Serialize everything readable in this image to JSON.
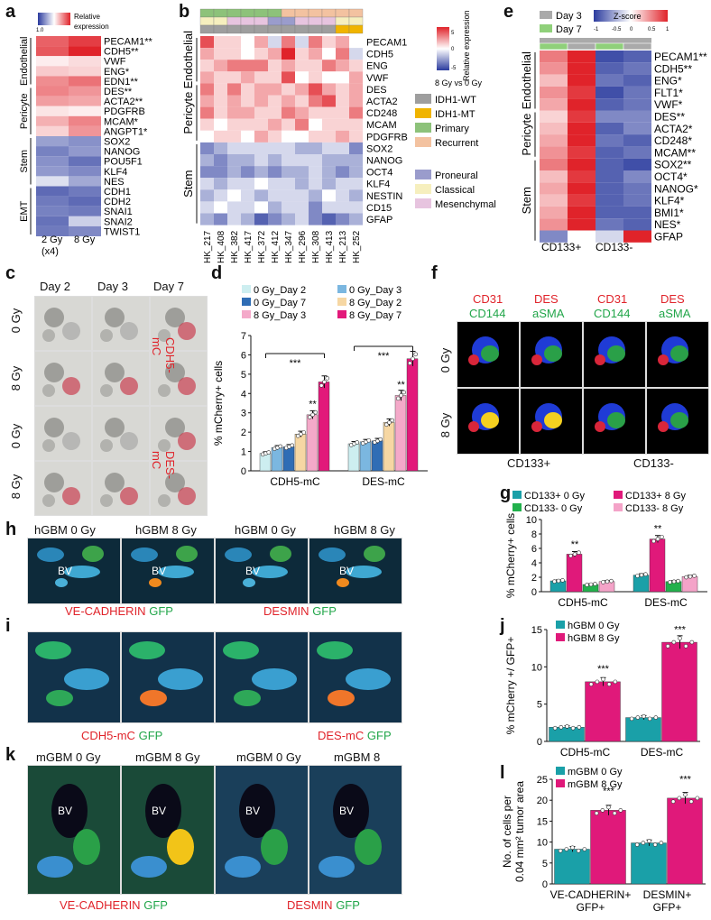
{
  "panel_labels": {
    "a": "a",
    "b": "b",
    "c": "c",
    "d": "d",
    "e": "e",
    "f": "f",
    "g": "g",
    "h": "h",
    "i": "i",
    "j": "j",
    "k": "k",
    "l": "l"
  },
  "heatmap_a": {
    "legend_title": "Relative expression",
    "legend_ticks": [
      "1.0",
      "0",
      "5"
    ],
    "groups": [
      "Endothelial",
      "Pericyte",
      "Stem",
      "EMT"
    ],
    "genes": [
      "PECAM1**",
      "CDH5**",
      "VWF",
      "ENG*",
      "EDN1**",
      "DES**",
      "ACTA2**",
      "PDGFRB",
      "MCAM*",
      "ANGPT1*",
      "SOX2",
      "NANOG",
      "POU5F1",
      "KLF4",
      "NES",
      "CDH1",
      "CDH2",
      "SNAI1",
      "SNAI2",
      "TWIST1"
    ],
    "columns": [
      "2 Gy\n(x4)",
      "8 Gy"
    ],
    "col_label_1": "2 Gy",
    "col_label_1b": "(x4)",
    "col_label_2": "8 Gy",
    "values": [
      [
        1.8,
        2.2
      ],
      [
        1.9,
        2.8
      ],
      [
        0.2,
        0.4
      ],
      [
        0.6,
        0.5
      ],
      [
        1.3,
        1.6
      ],
      [
        1.4,
        1.2
      ],
      [
        1.1,
        1.0
      ],
      [
        0.3,
        0.2
      ],
      [
        0.9,
        1.4
      ],
      [
        0.5,
        1.2
      ],
      [
        -1.2,
        -1.4
      ],
      [
        -1.6,
        -1.3
      ],
      [
        -1.4,
        -1.8
      ],
      [
        -1.3,
        -1.5
      ],
      [
        -0.4,
        -1.1
      ],
      [
        -1.9,
        -1.7
      ],
      [
        -1.7,
        -1.9
      ],
      [
        -1.6,
        -1.7
      ],
      [
        -1.8,
        -0.6
      ],
      [
        -1.7,
        -1.5
      ]
    ]
  },
  "heatmap_b": {
    "legend_title": "Relative expression",
    "legend_sub": "8 Gy vs 0 Gy",
    "legend_ticks": [
      "5",
      "0",
      "-5"
    ],
    "annot_legend": [
      {
        "label": "IDH1-WT",
        "color": "#9e9e9e"
      },
      {
        "label": "IDH1-MT",
        "color": "#f0b400"
      },
      {
        "label": "Primary",
        "color": "#8dc27a"
      },
      {
        "label": "Recurrent",
        "color": "#f3c2a0"
      },
      {
        "label": "Proneural",
        "color": "#9a9ccc"
      },
      {
        "label": "Classical",
        "color": "#f6efbe"
      },
      {
        "label": "Mesenchymal",
        "color": "#e7c4df"
      }
    ],
    "groups": [
      "Endothelial",
      "Pericyte",
      "Stem"
    ],
    "genes": [
      "PECAM1",
      "CDH5",
      "ENG",
      "VWF",
      "DES",
      "ACTA2",
      "CD248",
      "MCAM",
      "PDGFRB",
      "SOX2",
      "NANOG",
      "OCT4",
      "KLF4",
      "NESTIN",
      "CD15",
      "GFAP"
    ],
    "samples": [
      "HK_217",
      "HK_408",
      "HK_382",
      "HK_417",
      "HK_372",
      "HK_412",
      "HK_347",
      "HK_296",
      "HK_308",
      "HK_413",
      "HK_213",
      "HK_252"
    ]
  },
  "heatmap_e": {
    "legend_day3": "Day 3",
    "legend_day7": "Day 7",
    "zscore": "Z-score",
    "ticks": [
      "-1",
      "-0.5",
      "0",
      "0.5",
      "1"
    ],
    "groups": [
      "Endothelial",
      "Pericyte",
      "Stem"
    ],
    "genes": [
      "PECAM1**",
      "CDH5**",
      "ENG*",
      "FLT1*",
      "VWF*",
      "DES**",
      "ACTA2*",
      "CD248*",
      "MCAM**",
      "SOX2**",
      "OCT4*",
      "NANOG*",
      "KLF4*",
      "BMI1*",
      "NES*",
      "GFAP"
    ],
    "columns": [
      "CD133+",
      "CD133-"
    ]
  },
  "panel_c": {
    "days": [
      "Day 2",
      "Day 3",
      "Day 7"
    ],
    "rows": [
      "0 Gy",
      "8 Gy",
      "0 Gy",
      "8 Gy"
    ],
    "side_labels": [
      "CDH5-mC",
      "DES-mC"
    ]
  },
  "panel_f": {
    "col_labels_top": [
      "CD31",
      "DES",
      "CD31",
      "DES"
    ],
    "col_labels_bot": [
      "CD144",
      "aSMA",
      "CD144",
      "aSMA"
    ],
    "rows": [
      "0 Gy",
      "8 Gy"
    ],
    "bottom": [
      "CD133+",
      "CD133-"
    ]
  },
  "panel_h": {
    "cols": [
      "hGBM 0 Gy",
      "hGBM 8 Gy",
      "hGBM 0 Gy",
      "hGBM 8 Gy"
    ],
    "bottom_left": "VE-CADHERIN",
    "bottom_right": "DESMIN",
    "gfp": "GFP",
    "bv": "BV"
  },
  "panel_i": {
    "bottom_left": "CDH5-mC",
    "bottom_right": "DES-mC",
    "gfp": "GFP"
  },
  "panel_k": {
    "cols": [
      "mGBM 0 Gy",
      "mGBM 8 Gy",
      "mGBM 0 Gy",
      "mGBM 8 Gy"
    ],
    "bottom_left": "VE-CADHERIN",
    "bottom_right": "DESMIN",
    "gfp": "GFP",
    "bv": "BV"
  },
  "chart_data": [
    {
      "id": "d",
      "type": "bar",
      "ylabel": "% mCherry+ cells",
      "ylim": [
        0,
        7
      ],
      "yticks": [
        0,
        1,
        2,
        3,
        4,
        5,
        6,
        7
      ],
      "categories": [
        "CDH5-mC",
        "DES-mC"
      ],
      "series": [
        {
          "name": "0 Gy_Day 2",
          "color": "#cdeef0",
          "values": [
            0.9,
            1.4
          ]
        },
        {
          "name": "0 Gy_Day 3",
          "color": "#7bb7e0",
          "values": [
            1.2,
            1.5
          ]
        },
        {
          "name": "0 Gy_Day 7",
          "color": "#2f6db5",
          "values": [
            1.25,
            1.55
          ]
        },
        {
          "name": "8 Gy_Day 2",
          "color": "#f6d7a3",
          "values": [
            1.9,
            2.5
          ]
        },
        {
          "name": "8 Gy_Day 3",
          "color": "#f4a9c9",
          "values": [
            2.9,
            3.9
          ]
        },
        {
          "name": "8 Gy_Day 7",
          "color": "#e2197a",
          "values": [
            4.6,
            5.8
          ]
        }
      ],
      "annotations": [
        "***",
        "***",
        "**",
        "**"
      ]
    },
    {
      "id": "g",
      "type": "bar",
      "ylabel": "% mCherry+ cells",
      "ylim": [
        0,
        10
      ],
      "yticks": [
        0,
        2,
        4,
        6,
        8,
        10
      ],
      "categories": [
        "CDH5-mC",
        "DES-mC"
      ],
      "series": [
        {
          "name": "CD133+ 0 Gy",
          "color": "#1aa0a8",
          "values": [
            1.5,
            2.3
          ]
        },
        {
          "name": "CD133+ 8 Gy",
          "color": "#e0197a",
          "values": [
            5.2,
            7.3
          ]
        },
        {
          "name": "CD133- 0 Gy",
          "color": "#22b14c",
          "values": [
            1.0,
            1.4
          ]
        },
        {
          "name": "CD133- 8 Gy",
          "color": "#f4a3c8",
          "values": [
            1.4,
            2.1
          ]
        }
      ],
      "annotations": [
        "**",
        "**"
      ]
    },
    {
      "id": "j",
      "type": "bar",
      "ylabel": "% mCherry +/ GFP+",
      "ylim": [
        0,
        15
      ],
      "yticks": [
        0,
        5,
        10,
        15
      ],
      "categories": [
        "CDH5-mC",
        "DES-mC"
      ],
      "series": [
        {
          "name": "hGBM 0 Gy",
          "color": "#1aa0a8",
          "values": [
            1.9,
            3.2
          ]
        },
        {
          "name": "hGBM 8 Gy",
          "color": "#e0197a",
          "values": [
            8.0,
            13.3
          ]
        }
      ],
      "annotations": [
        "***",
        "***"
      ]
    },
    {
      "id": "l",
      "type": "bar",
      "ylabel": "No. of cells per",
      "ylabel2": "0.04 mm² tumor area",
      "ylim": [
        0,
        25
      ],
      "yticks": [
        0,
        5,
        10,
        15,
        20,
        25
      ],
      "categories": [
        "VE-CADHERIN+",
        "DESMIN+"
      ],
      "categories2": [
        "GFP+",
        "GFP+"
      ],
      "series": [
        {
          "name": "mGBM 0 Gy",
          "color": "#1aa0a8",
          "values": [
            8.3,
            9.8
          ]
        },
        {
          "name": "mGBM 8 Gy",
          "color": "#e0197a",
          "values": [
            17.6,
            20.5
          ]
        }
      ],
      "annotations": [
        "***",
        "***"
      ]
    }
  ]
}
